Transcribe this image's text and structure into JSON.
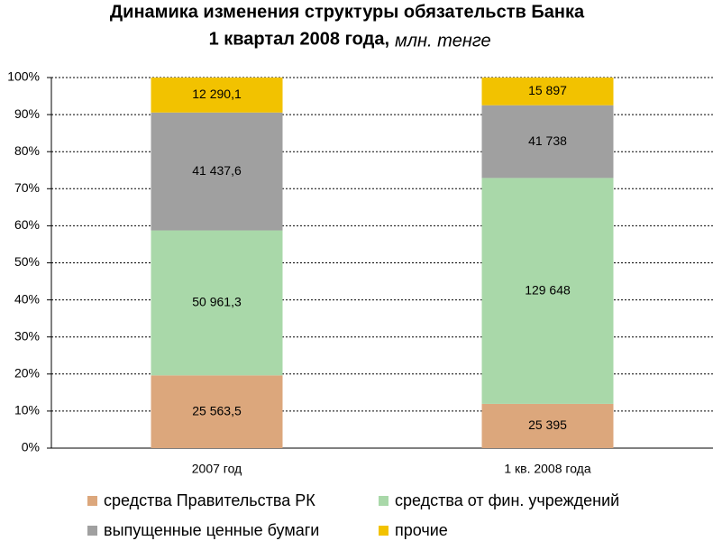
{
  "chart_data": {
    "type": "bar",
    "stacking": "percent",
    "title": "Динамика изменения структуры обязательств Банка",
    "subtitle": "1 квартал 2008 года,",
    "unit_note": "млн. тенге",
    "categories": [
      "2007 год",
      "1 кв. 2008 года"
    ],
    "series": [
      {
        "name": "средства Правительства РК",
        "color": "#dca77c",
        "values": [
          25563.5,
          25395
        ],
        "value_labels": [
          "25 563,5",
          "25 395"
        ]
      },
      {
        "name": "средства от фин. учреждений",
        "color": "#a9d8a9",
        "values": [
          50961.3,
          129648
        ],
        "value_labels": [
          "50 961,3",
          "129 648"
        ]
      },
      {
        "name": "выпущенные ценные бумаги",
        "color": "#a0a0a0",
        "values": [
          41437.6,
          41738
        ],
        "value_labels": [
          "41 437,6",
          "41 738"
        ]
      },
      {
        "name": "прочие",
        "color": "#f2c200",
        "values": [
          12290.1,
          15897
        ],
        "value_labels": [
          "12 290,1",
          "15 897"
        ]
      }
    ],
    "ylim": [
      0,
      100
    ],
    "yticks": [
      {
        "value": 0,
        "label": "0%"
      },
      {
        "value": 10,
        "label": "10%"
      },
      {
        "value": 20,
        "label": "20%"
      },
      {
        "value": 30,
        "label": "30%"
      },
      {
        "value": 40,
        "label": "40%"
      },
      {
        "value": 50,
        "label": "50%"
      },
      {
        "value": 60,
        "label": "60%"
      },
      {
        "value": 70,
        "label": "70%"
      },
      {
        "value": 80,
        "label": "80%"
      },
      {
        "value": 90,
        "label": "90%"
      },
      {
        "value": 100,
        "label": "100%"
      }
    ],
    "grid": true
  }
}
